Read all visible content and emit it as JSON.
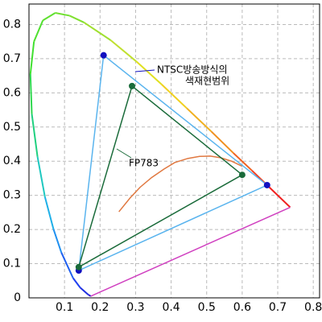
{
  "chart_data": {
    "type": "line",
    "xlim": [
      0,
      0.82
    ],
    "ylim": [
      0,
      0.86
    ],
    "xticks": [
      0.1,
      0.2,
      0.3,
      0.4,
      0.5,
      0.6,
      0.7,
      0.8
    ],
    "yticks": [
      0,
      0.1,
      0.2,
      0.3,
      0.4,
      0.5,
      0.6,
      0.7,
      0.8
    ],
    "grid": true,
    "series": [
      {
        "x": [
          0.174,
          0.167,
          0.144,
          0.124,
          0.091,
          0.069,
          0.045,
          0.024,
          0.008,
          0.004,
          0.014,
          0.039,
          0.074,
          0.114,
          0.155,
          0.23,
          0.302,
          0.373,
          0.444,
          0.513,
          0.575,
          0.627,
          0.666,
          0.735
        ],
        "y": [
          0.005,
          0.009,
          0.03,
          0.058,
          0.133,
          0.201,
          0.295,
          0.413,
          0.538,
          0.655,
          0.75,
          0.812,
          0.834,
          0.826,
          0.806,
          0.754,
          0.692,
          0.625,
          0.555,
          0.487,
          0.424,
          0.373,
          0.334,
          0.265
        ],
        "colors": [
          "#3020d0",
          "#2030e0",
          "#2040f0",
          "#2060f0",
          "#2090f0",
          "#20b0e8",
          "#20c8c0",
          "#20d080",
          "#30d850",
          "#40e030",
          "#50e030",
          "#60e030",
          "#70e030",
          "#80e030",
          "#a0e030",
          "#c0e030",
          "#e0e020",
          "#f0d020",
          "#f0b020",
          "#f09020",
          "#f06020",
          "#f04020",
          "#f02020"
        ]
      },
      {
        "x": [
          0.174,
          0.735
        ],
        "y": [
          0.005,
          0.265
        ],
        "color": "#d040c0"
      },
      {
        "x": [
          0.253,
          0.285,
          0.313,
          0.345,
          0.38,
          0.41,
          0.447,
          0.48,
          0.51,
          0.54,
          0.57,
          0.6
        ],
        "y": [
          0.252,
          0.293,
          0.324,
          0.352,
          0.377,
          0.396,
          0.408,
          0.414,
          0.415,
          0.41,
          0.4,
          0.385
        ],
        "color": "#e07840"
      },
      {
        "x": [
          0.67,
          0.21,
          0.14,
          0.67
        ],
        "y": [
          0.33,
          0.71,
          0.08,
          0.33
        ],
        "color": "#5ab4ee",
        "marker_color": "#1010c0"
      },
      {
        "x": [
          0.6,
          0.29,
          0.14,
          0.6
        ],
        "y": [
          0.36,
          0.62,
          0.09,
          0.36
        ],
        "color": "#1a6b3a",
        "marker_color": "#1a6b3a"
      }
    ],
    "annotations": [
      {
        "text": [
          "NTSC방송방식의",
          "색재현범위"
        ],
        "color": "#1010c0"
      },
      {
        "text": "FP783",
        "color": "#1a6b3a"
      }
    ]
  }
}
